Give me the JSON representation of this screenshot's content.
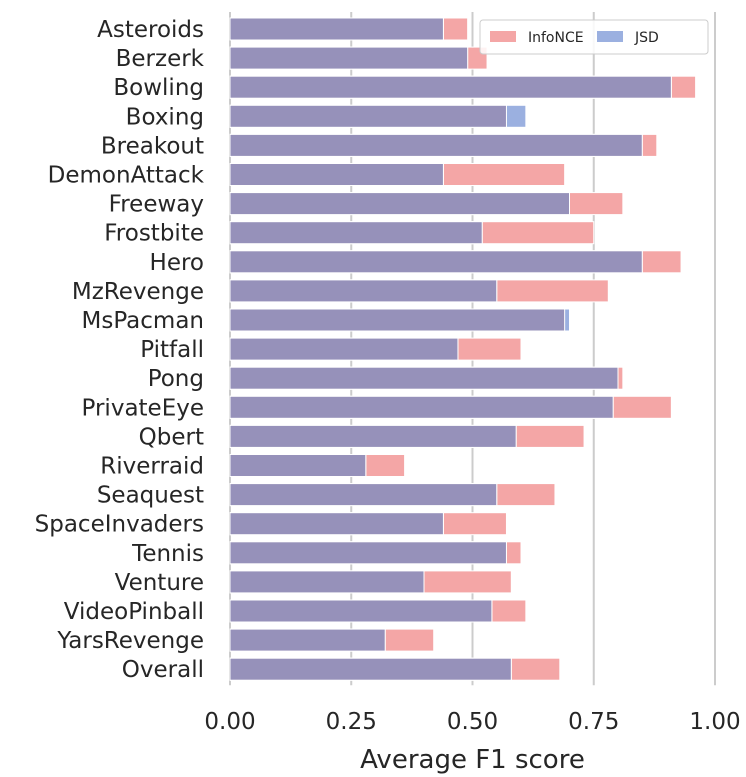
{
  "chart_data": {
    "type": "bar",
    "orientation": "horizontal",
    "title": "",
    "xlabel": "Average F1 score",
    "ylabel": "",
    "xlim": [
      0,
      1
    ],
    "xticks": [
      "0.00",
      "0.25",
      "0.50",
      "0.75",
      "1.00"
    ],
    "grid": "vertical",
    "legend_position": "top-right",
    "categories": [
      "Asteroids",
      "Berzerk",
      "Bowling",
      "Boxing",
      "Breakout",
      "DemonAttack",
      "Freeway",
      "Frostbite",
      "Hero",
      "MzRevenge",
      "MsPacman",
      "Pitfall",
      "Pong",
      "PrivateEye",
      "Qbert",
      "Riverraid",
      "Seaquest",
      "SpaceInvaders",
      "Tennis",
      "Venture",
      "VideoPinball",
      "YarsRevenge",
      "Overall"
    ],
    "series": [
      {
        "name": "InfoNCE",
        "color": "#f4a6a6",
        "values": [
          0.49,
          0.53,
          0.96,
          0.57,
          0.88,
          0.69,
          0.81,
          0.75,
          0.93,
          0.78,
          0.69,
          0.6,
          0.81,
          0.91,
          0.73,
          0.36,
          0.67,
          0.57,
          0.6,
          0.58,
          0.61,
          0.42,
          0.68
        ]
      },
      {
        "name": "JSD",
        "color": "#9bb0e0",
        "values": [
          0.44,
          0.49,
          0.91,
          0.61,
          0.85,
          0.44,
          0.7,
          0.52,
          0.85,
          0.55,
          0.7,
          0.47,
          0.8,
          0.79,
          0.59,
          0.28,
          0.55,
          0.44,
          0.57,
          0.4,
          0.54,
          0.32,
          0.58
        ]
      }
    ],
    "overlap_color": "#9691ba"
  }
}
